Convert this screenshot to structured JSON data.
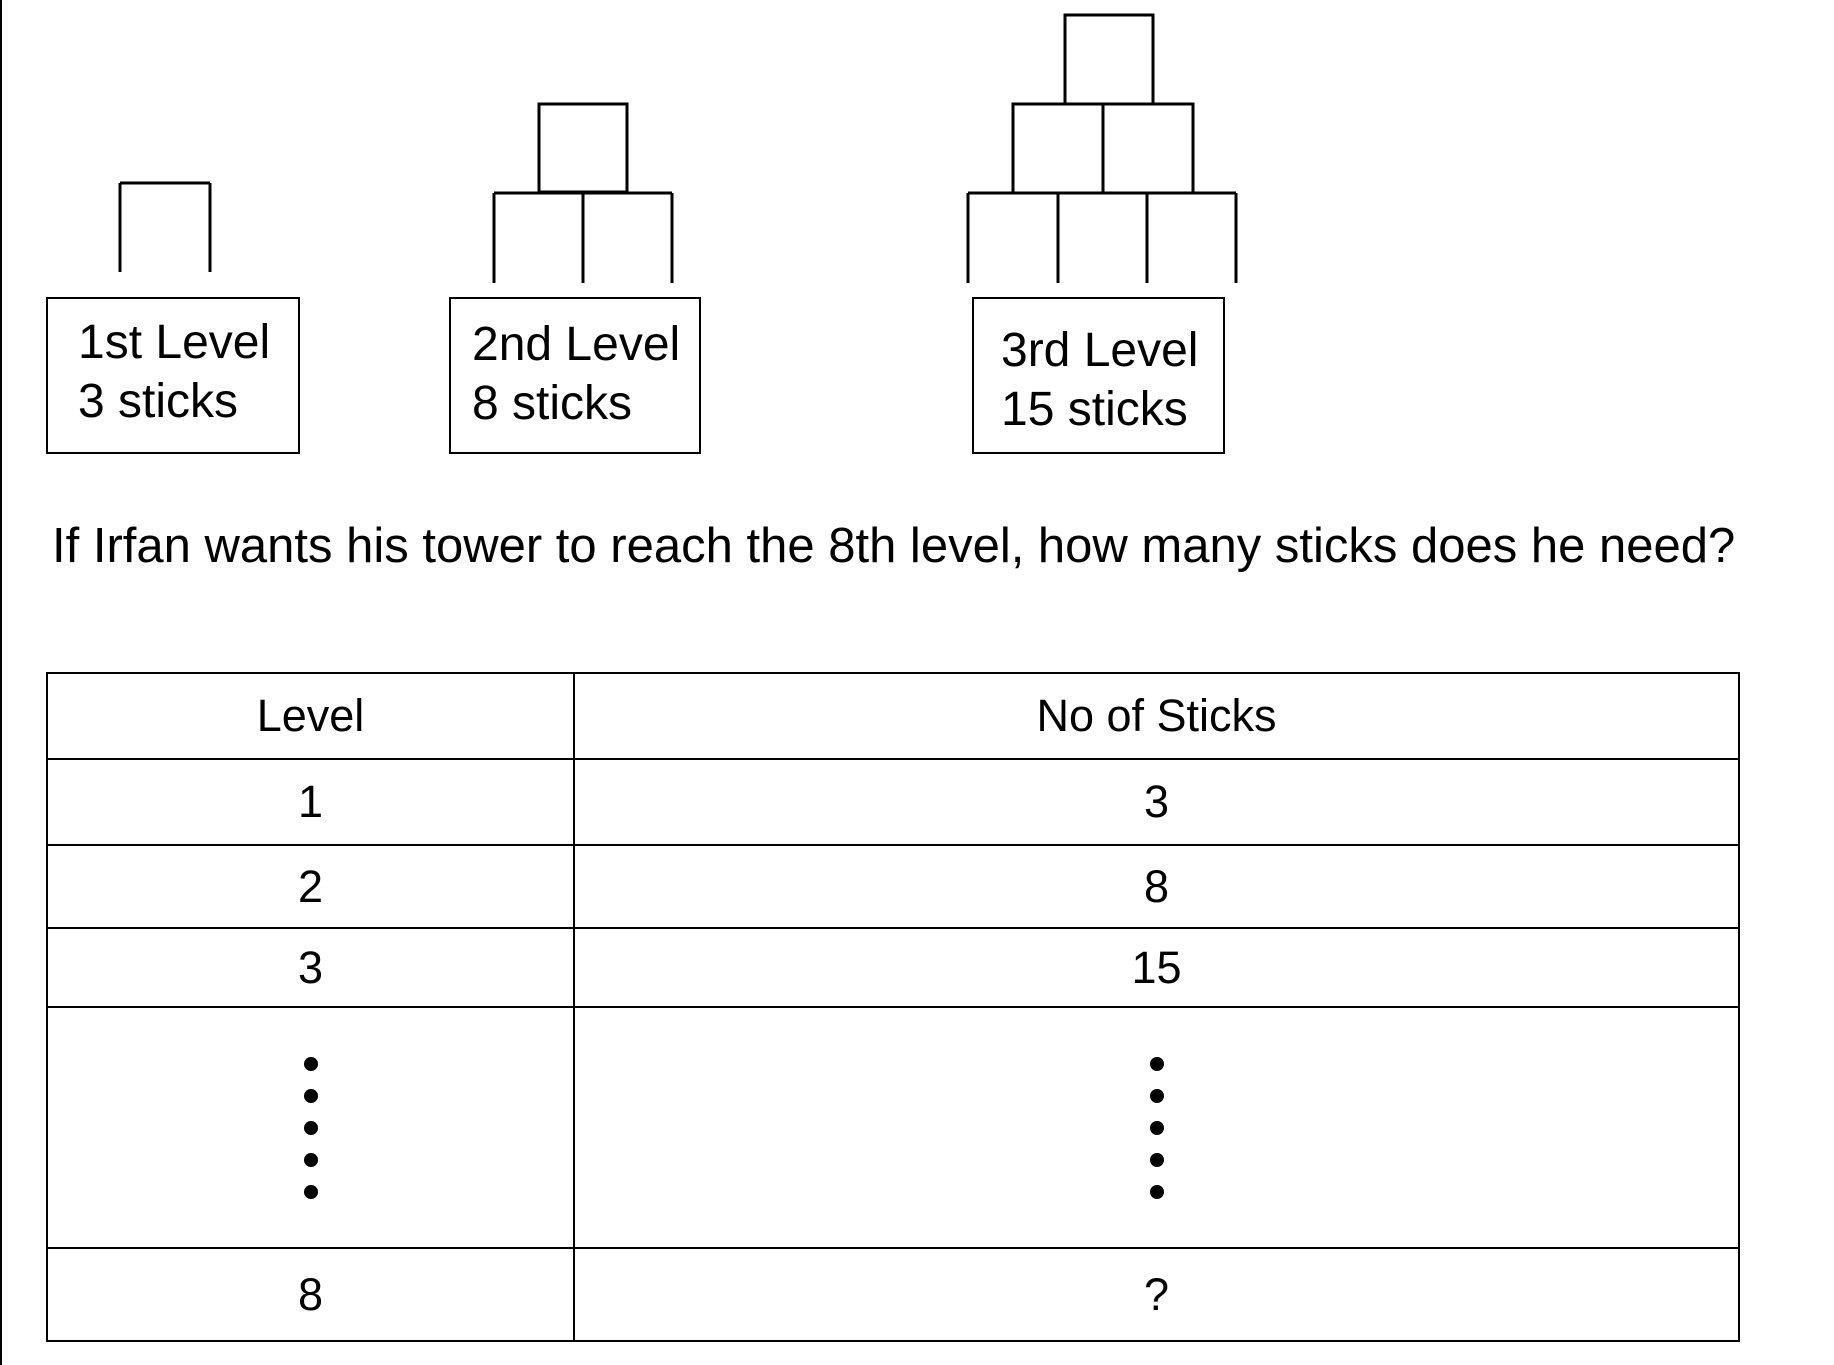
{
  "levels": [
    {
      "title": "1st Level",
      "sticks": "3 sticks"
    },
    {
      "title": "2nd Level",
      "sticks": "8 sticks"
    },
    {
      "title": "3rd Level",
      "sticks": "15 sticks"
    }
  ],
  "question": "If Irfan wants his tower to reach the 8th level, how many sticks does he need?",
  "table": {
    "headers": [
      "Level",
      "No of Sticks"
    ],
    "rows": [
      [
        "1",
        "3"
      ],
      [
        "2",
        "8"
      ],
      [
        "3",
        "15"
      ],
      [
        "8",
        "?"
      ]
    ],
    "ellipsis_dot_count": 5
  }
}
